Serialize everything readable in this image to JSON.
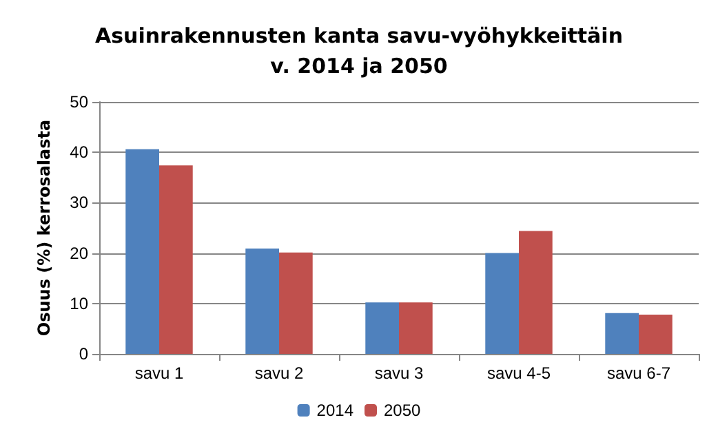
{
  "chart_data": {
    "type": "bar",
    "title": "Asuinrakennusten kanta savu-vyöhykkeittäin\nv. 2014 ja 2050",
    "ylabel": "Osuus (%) kerrosalasta",
    "categories": [
      "savu 1",
      "savu 2",
      "savu 3",
      "savu 4-5",
      "savu 6-7"
    ],
    "series": [
      {
        "name": "2014",
        "color": "#4f81bd",
        "values": [
          40.6,
          20.9,
          10.2,
          20.0,
          8.1
        ]
      },
      {
        "name": "2050",
        "color": "#c0504d",
        "values": [
          37.4,
          20.1,
          10.2,
          24.4,
          7.8
        ]
      }
    ],
    "ylim": [
      0,
      50
    ],
    "yticks": [
      0,
      10,
      20,
      30,
      40,
      50
    ],
    "grid": "y",
    "legend": "bottom"
  }
}
